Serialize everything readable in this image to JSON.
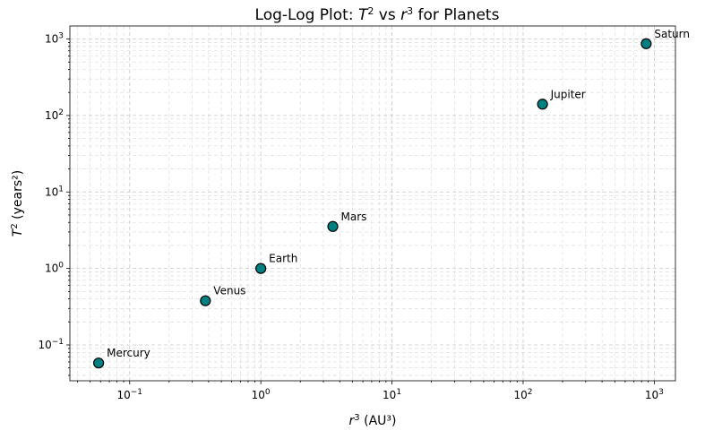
{
  "chart_data": {
    "type": "scatter",
    "title": "Log-Log Plot: T² vs r³ for Planets",
    "title_parts": [
      "Log-Log Plot: ",
      "T",
      "2",
      " vs ",
      "r",
      "3",
      " for Planets"
    ],
    "xlabel_parts": [
      "r",
      "3",
      " (AU³)"
    ],
    "ylabel_parts": [
      "T",
      "2",
      " (years²)"
    ],
    "xscale": "log",
    "yscale": "log",
    "xlim": [
      0.035,
      1450
    ],
    "ylim": [
      0.034,
      1480
    ],
    "grid": "major and minor, dashed",
    "x_tick_labels": [
      {
        "value": 0.1,
        "base": "10",
        "exp": "−1"
      },
      {
        "value": 1,
        "base": "10",
        "exp": "0"
      },
      {
        "value": 10,
        "base": "10",
        "exp": "1"
      },
      {
        "value": 100,
        "base": "10",
        "exp": "2"
      },
      {
        "value": 1000,
        "base": "10",
        "exp": "3"
      }
    ],
    "y_tick_labels": [
      {
        "value": 0.1,
        "base": "10",
        "exp": "−1"
      },
      {
        "value": 1,
        "base": "10",
        "exp": "0"
      },
      {
        "value": 10,
        "base": "10",
        "exp": "1"
      },
      {
        "value": 100,
        "base": "10",
        "exp": "2"
      },
      {
        "value": 1000,
        "base": "10",
        "exp": "3"
      }
    ],
    "marker_color": "#008080",
    "marker_edge_color": "#000000",
    "points": [
      {
        "label": "Mercury",
        "x": 0.058,
        "y": 0.058
      },
      {
        "label": "Venus",
        "x": 0.378,
        "y": 0.378
      },
      {
        "label": "Earth",
        "x": 1.0,
        "y": 1.0
      },
      {
        "label": "Mars",
        "x": 3.54,
        "y": 3.54
      },
      {
        "label": "Jupiter",
        "x": 140.6,
        "y": 140.6
      },
      {
        "label": "Saturn",
        "x": 867.9,
        "y": 867.9
      }
    ]
  }
}
